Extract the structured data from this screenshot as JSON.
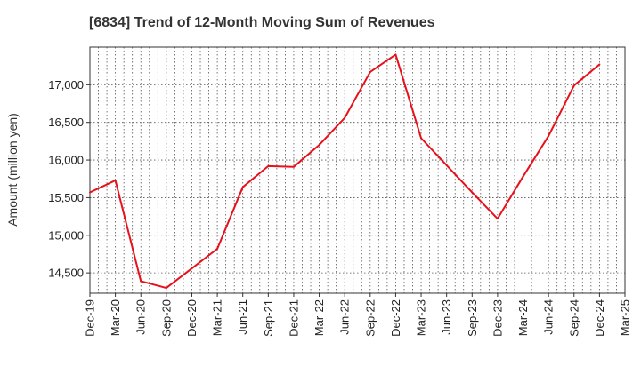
{
  "chart_data": {
    "type": "line",
    "title": "[6834]  Trend of 12-Month Moving Sum of Revenues",
    "ylabel": "Amount (million yen)",
    "xlabel": "",
    "categories": [
      "Dec-19",
      "Mar-20",
      "Jun-20",
      "Sep-20",
      "Dec-20",
      "Mar-21",
      "Jun-21",
      "Sep-21",
      "Dec-21",
      "Mar-22",
      "Jun-22",
      "Sep-22",
      "Dec-22",
      "Mar-23",
      "Jun-23",
      "Sep-23",
      "Dec-23",
      "Mar-24",
      "Jun-24",
      "Sep-24",
      "Dec-24",
      "Mar-25"
    ],
    "y_ticks": [
      "14,500",
      "15,000",
      "15,500",
      "16,000",
      "16,500",
      "17,000"
    ],
    "y_tick_values": [
      14500,
      15000,
      15500,
      16000,
      16500,
      17000
    ],
    "ylim": [
      14230,
      17500
    ],
    "grid": true,
    "series": [
      {
        "values": [
          15570,
          15730,
          14390,
          14300,
          14560,
          14820,
          15640,
          15920,
          15910,
          16200,
          16560,
          17170,
          17400,
          16290,
          15930,
          15570,
          15220,
          15780,
          16320,
          16990,
          17270,
          null
        ],
        "color": "#e8101a"
      }
    ]
  }
}
